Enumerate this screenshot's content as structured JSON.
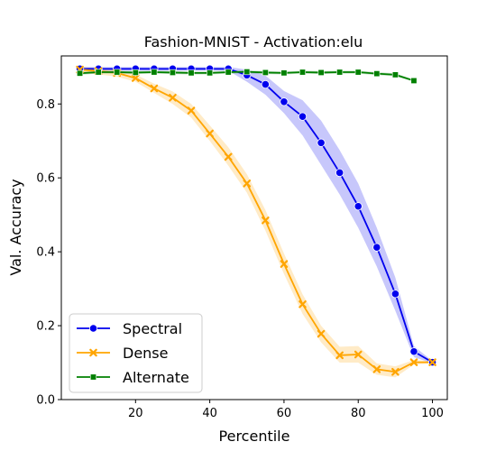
{
  "chart_data": {
    "type": "line",
    "title": "Fashion-MNIST - Activation:elu",
    "xlabel": "Percentile",
    "ylabel": "Val. Accuracy",
    "xlim": [
      0,
      104
    ],
    "ylim": [
      0,
      0.93
    ],
    "xticks": [
      20,
      40,
      60,
      80,
      100
    ],
    "yticks": [
      0.0,
      0.2,
      0.4,
      0.6,
      0.8
    ],
    "grid": false,
    "legend_position": "lower-left",
    "series": [
      {
        "name": "Spectral",
        "color": "#0000ee",
        "marker": "circle",
        "x": [
          5,
          10,
          15,
          20,
          25,
          30,
          35,
          40,
          45,
          50,
          55,
          60,
          65,
          70,
          75,
          80,
          85,
          90,
          95,
          100
        ],
        "y": [
          0.895,
          0.895,
          0.895,
          0.895,
          0.895,
          0.895,
          0.895,
          0.895,
          0.895,
          0.878,
          0.853,
          0.806,
          0.766,
          0.695,
          0.614,
          0.523,
          0.412,
          0.286,
          0.13,
          0.101
        ],
        "lower": [
          0.89,
          0.89,
          0.89,
          0.89,
          0.89,
          0.89,
          0.89,
          0.89,
          0.89,
          0.86,
          0.825,
          0.775,
          0.715,
          0.635,
          0.555,
          0.465,
          0.36,
          0.24,
          0.115,
          0.098
        ],
        "upper": [
          0.9,
          0.9,
          0.9,
          0.9,
          0.9,
          0.9,
          0.9,
          0.9,
          0.9,
          0.893,
          0.877,
          0.835,
          0.81,
          0.755,
          0.675,
          0.585,
          0.465,
          0.33,
          0.145,
          0.104
        ]
      },
      {
        "name": "Dense",
        "color": "#ffa500",
        "marker": "x",
        "x": [
          5,
          10,
          15,
          20,
          25,
          30,
          35,
          40,
          45,
          50,
          55,
          60,
          65,
          70,
          75,
          80,
          85,
          90,
          95,
          100
        ],
        "y": [
          0.893,
          0.889,
          0.884,
          0.87,
          0.842,
          0.817,
          0.782,
          0.72,
          0.657,
          0.585,
          0.485,
          0.367,
          0.258,
          0.178,
          0.12,
          0.122,
          0.082,
          0.075,
          0.101,
          0.101
        ],
        "lower": [
          0.885,
          0.88,
          0.874,
          0.86,
          0.83,
          0.8,
          0.763,
          0.7,
          0.633,
          0.56,
          0.457,
          0.34,
          0.232,
          0.155,
          0.1,
          0.1,
          0.067,
          0.06,
          0.095,
          0.098
        ],
        "upper": [
          0.9,
          0.897,
          0.893,
          0.88,
          0.855,
          0.834,
          0.8,
          0.742,
          0.683,
          0.61,
          0.513,
          0.395,
          0.285,
          0.2,
          0.143,
          0.145,
          0.098,
          0.09,
          0.107,
          0.104
        ]
      },
      {
        "name": "Alternate",
        "color": "#008000",
        "marker": "square",
        "x": [
          5,
          10,
          15,
          20,
          25,
          30,
          35,
          40,
          45,
          50,
          55,
          60,
          65,
          70,
          75,
          80,
          85,
          90,
          95
        ],
        "y": [
          0.883,
          0.886,
          0.886,
          0.885,
          0.886,
          0.885,
          0.884,
          0.884,
          0.886,
          0.887,
          0.885,
          0.884,
          0.886,
          0.885,
          0.886,
          0.886,
          0.882,
          0.879,
          0.863
        ],
        "lower": [
          0.879,
          0.882,
          0.882,
          0.881,
          0.882,
          0.881,
          0.88,
          0.88,
          0.882,
          0.883,
          0.881,
          0.88,
          0.882,
          0.881,
          0.882,
          0.882,
          0.878,
          0.875,
          0.86
        ],
        "upper": [
          0.887,
          0.89,
          0.89,
          0.889,
          0.89,
          0.889,
          0.888,
          0.888,
          0.89,
          0.891,
          0.889,
          0.888,
          0.89,
          0.889,
          0.89,
          0.89,
          0.886,
          0.883,
          0.866
        ]
      }
    ]
  }
}
